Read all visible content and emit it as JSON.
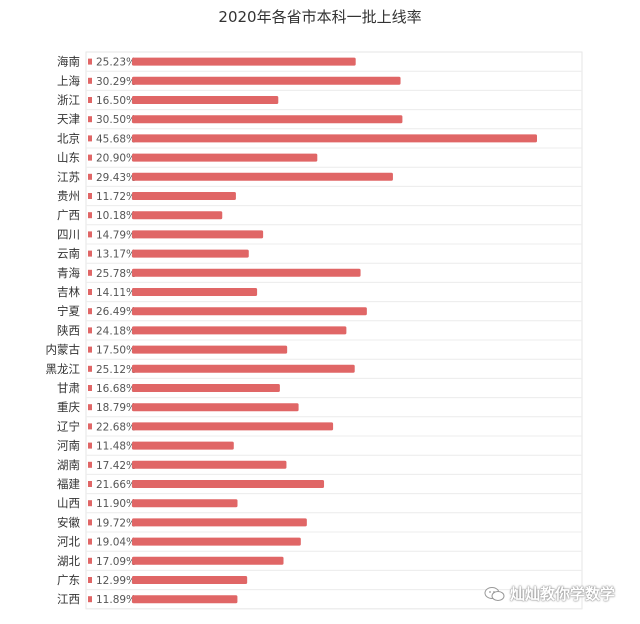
{
  "chart_data": {
    "type": "bar",
    "orientation": "horizontal",
    "title": "2020年各省市本科一批上线率",
    "categories": [
      "海南",
      "上海",
      "浙江",
      "天津",
      "北京",
      "山东",
      "江苏",
      "贵州",
      "广西",
      "四川",
      "云南",
      "青海",
      "吉林",
      "宁夏",
      "陕西",
      "内蒙古",
      "黑龙江",
      "甘肃",
      "重庆",
      "辽宁",
      "河南",
      "湖南",
      "福建",
      "山西",
      "安徽",
      "河北",
      "湖北",
      "广东",
      "江西"
    ],
    "value_labels": [
      "25.23%",
      "30.29%",
      "16.50%",
      "30.50%",
      "45.68%",
      "20.90%",
      "29.43%",
      "11.72%",
      "10.18%",
      "14.79%",
      "13.17%",
      "25.78%",
      "14.11%",
      "26.49%",
      "24.18%",
      "17.50%",
      "25.12%",
      "16.68%",
      "18.79%",
      "22.68%",
      "11.48%",
      "17.42%",
      "21.66%",
      "11.90%",
      "19.72%",
      "19.04%",
      "17.09%",
      "12.99%",
      "11.89%"
    ],
    "values": [
      25.23,
      30.29,
      16.5,
      30.5,
      45.68,
      20.9,
      29.43,
      11.72,
      10.18,
      14.79,
      13.17,
      25.78,
      14.11,
      26.49,
      24.18,
      17.5,
      25.12,
      16.68,
      18.79,
      22.68,
      11.48,
      17.42,
      21.66,
      11.9,
      19.72,
      19.04,
      17.09,
      12.99,
      11.89
    ],
    "xlim": [
      0,
      50
    ],
    "bar_color": "#e06666",
    "grid": false,
    "legend": "none"
  },
  "watermark": {
    "text": "灿灿教你学数学",
    "icon": "wechat-icon"
  }
}
